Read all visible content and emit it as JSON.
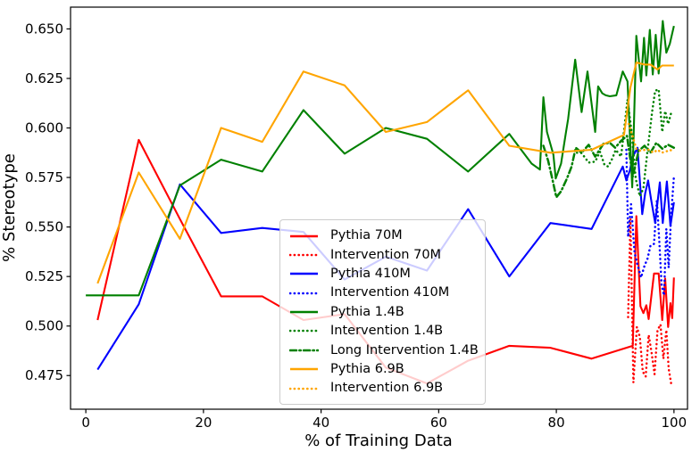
{
  "chart_data": {
    "type": "line",
    "title": "",
    "xlabel": "% of Training Data",
    "ylabel": "% Stereotype",
    "xlim": [
      -2.6,
      102.3
    ],
    "ylim": [
      0.458,
      0.661
    ],
    "xticks": [
      0,
      20,
      40,
      60,
      80,
      100
    ],
    "yticks": [
      0.475,
      0.5,
      0.525,
      0.55,
      0.575,
      0.6,
      0.625,
      0.65
    ],
    "ytick_labels": [
      "0.475",
      "0.500",
      "0.525",
      "0.550",
      "0.575",
      "0.600",
      "0.625",
      "0.650"
    ],
    "grid": false,
    "legend_position": "center-bottom",
    "frame_color": "#000000",
    "series": [
      {
        "name": "Pythia 70M",
        "color": "#ff0000",
        "style": "solid",
        "points": [
          [
            2,
            0.503
          ],
          [
            9,
            0.594
          ],
          [
            16,
            0.554
          ],
          [
            23,
            0.515
          ],
          [
            30,
            0.515
          ],
          [
            37,
            0.503
          ],
          [
            44,
            0.506
          ],
          [
            51,
            0.479
          ],
          [
            58,
            0.471
          ],
          [
            65,
            0.4825
          ],
          [
            72,
            0.49
          ],
          [
            79,
            0.489
          ],
          [
            86,
            0.4835
          ],
          [
            93,
            0.49
          ],
          [
            93.6,
            0.5555
          ],
          [
            94.3,
            0.51
          ],
          [
            94.8,
            0.5065
          ],
          [
            95.3,
            0.5105
          ],
          [
            95.7,
            0.5035
          ],
          [
            96.6,
            0.5265
          ],
          [
            97.4,
            0.5265
          ],
          [
            98,
            0.503
          ],
          [
            98.5,
            0.524
          ],
          [
            99,
            0.4995
          ],
          [
            99.4,
            0.5115
          ],
          [
            99.7,
            0.504
          ],
          [
            100,
            0.5245
          ]
        ]
      },
      {
        "name": "Intervention 70M",
        "color": "#ff0000",
        "style": "dotted",
        "points": [
          [
            92.2,
            0.5045
          ],
          [
            92.6,
            0.554
          ],
          [
            93.1,
            0.4715
          ],
          [
            93.7,
            0.4995
          ],
          [
            94.2,
            0.4945
          ],
          [
            94.7,
            0.477
          ],
          [
            95.2,
            0.4745
          ],
          [
            95.7,
            0.4955
          ],
          [
            96.2,
            0.4865
          ],
          [
            96.7,
            0.4757
          ],
          [
            97.2,
            0.4978
          ],
          [
            97.7,
            0.5008
          ],
          [
            98.2,
            0.4835
          ],
          [
            98.7,
            0.498
          ],
          [
            99.1,
            0.4785
          ],
          [
            99.5,
            0.4712
          ],
          [
            100,
            0.4725
          ]
        ]
      },
      {
        "name": "Pythia 410M",
        "color": "#0000ff",
        "style": "solid",
        "points": [
          [
            2,
            0.478
          ],
          [
            9,
            0.511
          ],
          [
            16,
            0.5715
          ],
          [
            23,
            0.547
          ],
          [
            30,
            0.5495
          ],
          [
            37,
            0.5475
          ],
          [
            44,
            0.5235
          ],
          [
            51,
            0.535
          ],
          [
            58,
            0.528
          ],
          [
            65,
            0.559
          ],
          [
            72,
            0.525
          ],
          [
            79,
            0.552
          ],
          [
            86,
            0.549
          ],
          [
            91.3,
            0.5805
          ],
          [
            91.9,
            0.5735
          ],
          [
            92.5,
            0.5785
          ],
          [
            93,
            0.5855
          ],
          [
            93.8,
            0.59
          ],
          [
            94.6,
            0.5565
          ],
          [
            95.1,
            0.567
          ],
          [
            95.6,
            0.5735
          ],
          [
            96.1,
            0.564
          ],
          [
            96.8,
            0.552
          ],
          [
            97.6,
            0.5725
          ],
          [
            98.1,
            0.552
          ],
          [
            98.8,
            0.573
          ],
          [
            99.4,
            0.5505
          ],
          [
            100,
            0.5625
          ]
        ]
      },
      {
        "name": "Intervention 410M",
        "color": "#0000ff",
        "style": "dotted",
        "points": [
          [
            91.9,
            0.589
          ],
          [
            92.2,
            0.545
          ],
          [
            92.7,
            0.5615
          ],
          [
            93.3,
            0.537
          ],
          [
            93.8,
            0.531
          ],
          [
            94.4,
            0.5245
          ],
          [
            95,
            0.5305
          ],
          [
            95.5,
            0.534
          ],
          [
            96,
            0.5405
          ],
          [
            96.6,
            0.5415
          ],
          [
            97.1,
            0.5635
          ],
          [
            97.5,
            0.543
          ],
          [
            97.9,
            0.5205
          ],
          [
            98.3,
            0.5155
          ],
          [
            98.7,
            0.549
          ],
          [
            99.1,
            0.5295
          ],
          [
            99.5,
            0.5555
          ],
          [
            100,
            0.5755
          ]
        ]
      },
      {
        "name": "Pythia 1.4B",
        "color": "#008000",
        "style": "solid",
        "points": [
          [
            0,
            0.5155
          ],
          [
            9,
            0.5155
          ],
          [
            16,
            0.571
          ],
          [
            23,
            0.584
          ],
          [
            30,
            0.578
          ],
          [
            37,
            0.609
          ],
          [
            44,
            0.587
          ],
          [
            51,
            0.6
          ],
          [
            58,
            0.5945
          ],
          [
            65,
            0.578
          ],
          [
            72,
            0.597
          ],
          [
            75.8,
            0.582
          ],
          [
            77.2,
            0.579
          ],
          [
            77.8,
            0.6155
          ],
          [
            78.4,
            0.598
          ],
          [
            79.5,
            0.5865
          ],
          [
            79.9,
            0.5745
          ],
          [
            80.8,
            0.582
          ],
          [
            81.6,
            0.597
          ],
          [
            82,
            0.6045
          ],
          [
            83.2,
            0.6345
          ],
          [
            84.3,
            0.608
          ],
          [
            85.3,
            0.6285
          ],
          [
            86.6,
            0.598
          ],
          [
            87.1,
            0.621
          ],
          [
            87.8,
            0.6175
          ],
          [
            88.4,
            0.6165
          ],
          [
            89.1,
            0.616
          ],
          [
            90.2,
            0.6165
          ],
          [
            91.3,
            0.6285
          ],
          [
            92.1,
            0.6235
          ],
          [
            92.9,
            0.57
          ],
          [
            93.6,
            0.6465
          ],
          [
            94.4,
            0.6235
          ],
          [
            94.9,
            0.6455
          ],
          [
            95.3,
            0.6265
          ],
          [
            95.9,
            0.6495
          ],
          [
            96.4,
            0.627
          ],
          [
            96.9,
            0.647
          ],
          [
            97.4,
            0.6275
          ],
          [
            98.1,
            0.654
          ],
          [
            98.7,
            0.638
          ],
          [
            99.3,
            0.6425
          ],
          [
            100,
            0.6515
          ]
        ]
      },
      {
        "name": "Intervention 1.4B",
        "color": "#008000",
        "style": "dotted",
        "points": [
          [
            83.5,
            0.5875
          ],
          [
            84.3,
            0.5873
          ],
          [
            85.5,
            0.5825
          ],
          [
            86.6,
            0.583
          ],
          [
            87.4,
            0.588
          ],
          [
            88.2,
            0.5813
          ],
          [
            88.8,
            0.5805
          ],
          [
            89.5,
            0.5845
          ],
          [
            90.1,
            0.589
          ],
          [
            91,
            0.5855
          ],
          [
            92.1,
            0.6143
          ],
          [
            92.8,
            0.598
          ],
          [
            93.5,
            0.5745
          ],
          [
            94.2,
            0.5655
          ],
          [
            94.8,
            0.5695
          ],
          [
            95.5,
            0.5885
          ],
          [
            96.3,
            0.6085
          ],
          [
            96.8,
            0.6188
          ],
          [
            97.4,
            0.6195
          ],
          [
            98,
            0.598
          ],
          [
            98.5,
            0.6085
          ],
          [
            99,
            0.602
          ],
          [
            99.5,
            0.6075
          ],
          [
            100,
            0.6075
          ]
        ]
      },
      {
        "name": "Long Intervention 1.4B",
        "color": "#008000",
        "style": "dashdot",
        "points": [
          [
            77.8,
            0.591
          ],
          [
            78.6,
            0.5835
          ],
          [
            79.3,
            0.5745
          ],
          [
            80,
            0.565
          ],
          [
            80.8,
            0.568
          ],
          [
            81.8,
            0.5745
          ],
          [
            82.6,
            0.5805
          ],
          [
            83.3,
            0.59
          ],
          [
            84.3,
            0.5875
          ],
          [
            85.5,
            0.5915
          ],
          [
            86.6,
            0.5855
          ],
          [
            88,
            0.592
          ],
          [
            89.1,
            0.5925
          ],
          [
            90,
            0.59
          ],
          [
            91,
            0.5935
          ],
          [
            92,
            0.596
          ],
          [
            93,
            0.5755
          ],
          [
            94,
            0.5885
          ],
          [
            95,
            0.591
          ],
          [
            96,
            0.5875
          ],
          [
            97,
            0.5925
          ],
          [
            98,
            0.5895
          ],
          [
            99,
            0.5915
          ],
          [
            100,
            0.59
          ]
        ]
      },
      {
        "name": "Pythia 6.9B",
        "color": "#ffa500",
        "style": "solid",
        "points": [
          [
            2,
            0.5215
          ],
          [
            9,
            0.5775
          ],
          [
            16,
            0.544
          ],
          [
            23,
            0.6
          ],
          [
            30,
            0.593
          ],
          [
            37,
            0.6285
          ],
          [
            44,
            0.6215
          ],
          [
            51,
            0.598
          ],
          [
            58,
            0.603
          ],
          [
            65,
            0.619
          ],
          [
            72,
            0.591
          ],
          [
            79,
            0.5875
          ],
          [
            86,
            0.589
          ],
          [
            91.5,
            0.5965
          ],
          [
            92.6,
            0.6205
          ],
          [
            93.6,
            0.633
          ],
          [
            95,
            0.632
          ],
          [
            96,
            0.632
          ],
          [
            97.2,
            0.6295
          ],
          [
            98,
            0.6315
          ],
          [
            100,
            0.6315
          ]
        ]
      },
      {
        "name": "Intervention 6.9B",
        "color": "#ffa500",
        "style": "dotted",
        "points": [
          [
            92.3,
            0.602
          ],
          [
            93,
            0.5955
          ],
          [
            93.6,
            0.5895
          ],
          [
            94.3,
            0.5885
          ],
          [
            95.1,
            0.589
          ],
          [
            95.8,
            0.589
          ],
          [
            96.5,
            0.5875
          ],
          [
            97.2,
            0.589
          ],
          [
            97.9,
            0.5875
          ],
          [
            98.6,
            0.588
          ],
          [
            99.3,
            0.589
          ],
          [
            100,
            0.588
          ]
        ]
      }
    ]
  }
}
